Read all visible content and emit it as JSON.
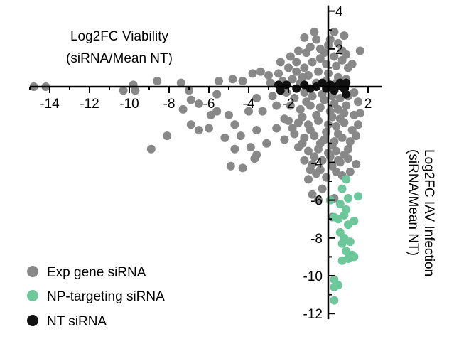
{
  "chart_data": {
    "type": "scatter",
    "title": "",
    "xlabel": [
      "Log2FC Viability",
      "(siRNA/Mean NT)"
    ],
    "ylabel": [
      "Log2FC IAV Infection",
      "(siRNA/Mean NT)"
    ],
    "xlim": [
      -15,
      2.7
    ],
    "ylim": [
      -12.3,
      4.3
    ],
    "x_ticks": [
      -14,
      -12,
      -10,
      -8,
      -6,
      -4,
      -2,
      2
    ],
    "y_ticks": [
      4,
      2,
      -4,
      -6,
      -8,
      -10,
      -12
    ],
    "axes_cross_at_origin": true,
    "grid": false,
    "legend_position": "bottom-left",
    "colors": {
      "exp": "#888888",
      "np": "#6cc79a",
      "nt": "#111111",
      "axis": "#000000"
    },
    "series": [
      {
        "name": "Exp gene siRNA",
        "color_key": "exp",
        "points": [
          [
            -14.8,
            0.0
          ],
          [
            -14.2,
            0.0
          ],
          [
            -10.3,
            -0.2
          ],
          [
            -9.8,
            0.1
          ],
          [
            -9.7,
            -0.2
          ],
          [
            -8.6,
            0.3
          ],
          [
            -8.9,
            -3.3
          ],
          [
            -8.1,
            -2.6
          ],
          [
            -7.3,
            -1.2
          ],
          [
            -6.9,
            -0.7
          ],
          [
            -6.5,
            -0.9
          ],
          [
            -6.9,
            -2.0
          ],
          [
            -6.5,
            -2.3
          ],
          [
            -6.0,
            -2.2
          ],
          [
            -5.9,
            -1.5
          ],
          [
            -5.6,
            -1.3
          ],
          [
            -5.2,
            -2.7
          ],
          [
            -5.6,
            -0.4
          ],
          [
            -5.0,
            -1.5
          ],
          [
            -4.7,
            -2.0
          ],
          [
            -4.4,
            -2.6
          ],
          [
            -4.7,
            -3.3
          ],
          [
            -4.3,
            -4.3
          ],
          [
            -4.9,
            -4.2
          ],
          [
            -7.4,
            0.2
          ],
          [
            -7.0,
            -0.2
          ],
          [
            -5.5,
            0.3
          ],
          [
            -4.8,
            0.4
          ],
          [
            -4.3,
            0.3
          ],
          [
            -3.8,
            0.7
          ],
          [
            -3.4,
            0.8
          ],
          [
            -3.6,
            -0.6
          ],
          [
            -3.3,
            -1.3
          ],
          [
            -4.0,
            -1.3
          ],
          [
            -3.6,
            -2.3
          ],
          [
            -3.1,
            -3.0
          ],
          [
            -2.6,
            -2.2
          ],
          [
            -2.2,
            -1.7
          ],
          [
            -3.9,
            -3.2
          ],
          [
            -3.6,
            -3.6
          ],
          [
            -3.7,
            -3.8
          ],
          [
            -3.0,
            0.6
          ],
          [
            -2.8,
            -0.5
          ],
          [
            -2.5,
            0.7
          ],
          [
            -2.0,
            1.0
          ],
          [
            -1.6,
            0.8
          ],
          [
            -1.2,
            1.0
          ],
          [
            -0.8,
            1.3
          ],
          [
            -0.4,
            1.5
          ],
          [
            -0.1,
            1.2
          ],
          [
            0.3,
            1.6
          ],
          [
            0.7,
            1.4
          ],
          [
            1.0,
            1.0
          ],
          [
            -1.5,
            1.9
          ],
          [
            -0.9,
            2.1
          ],
          [
            -0.4,
            2.0
          ],
          [
            0.1,
            2.5
          ],
          [
            0.5,
            2.3
          ],
          [
            0.8,
            2.7
          ],
          [
            -1.2,
            2.6
          ],
          [
            -0.7,
            2.9
          ],
          [
            0.3,
            2.9
          ],
          [
            0.7,
            1.9
          ],
          [
            1.2,
            1.2
          ],
          [
            1.6,
            1.9
          ],
          [
            -1.6,
            1.3
          ],
          [
            -1.0,
            0.6
          ],
          [
            -0.5,
            0.8
          ],
          [
            0.0,
            0.7
          ],
          [
            0.5,
            0.5
          ],
          [
            0.9,
            0.4
          ],
          [
            -2.3,
            0.3
          ],
          [
            -1.8,
            0.4
          ],
          [
            -1.3,
            0.5
          ],
          [
            -2.1,
            -0.3
          ],
          [
            -1.7,
            -0.6
          ],
          [
            -1.2,
            -0.3
          ],
          [
            -0.8,
            -0.5
          ],
          [
            -0.3,
            -0.4
          ],
          [
            0.2,
            -0.5
          ],
          [
            0.6,
            -0.6
          ],
          [
            1.0,
            -0.5
          ],
          [
            1.3,
            -0.3
          ],
          [
            -1.9,
            -1.0
          ],
          [
            -1.4,
            -1.2
          ],
          [
            -0.9,
            -1.0
          ],
          [
            -0.4,
            -1.1
          ],
          [
            0.1,
            -1.3
          ],
          [
            0.5,
            -1.2
          ],
          [
            0.9,
            -1.0
          ],
          [
            1.3,
            -1.5
          ],
          [
            -2.0,
            -1.8
          ],
          [
            -1.5,
            -1.9
          ],
          [
            -1.0,
            -2.0
          ],
          [
            -0.5,
            -1.8
          ],
          [
            0.0,
            -2.0
          ],
          [
            0.4,
            -2.1
          ],
          [
            0.8,
            -1.9
          ],
          [
            1.2,
            -2.3
          ],
          [
            -1.7,
            -2.5
          ],
          [
            -1.2,
            -2.7
          ],
          [
            -0.7,
            -2.6
          ],
          [
            -0.2,
            -2.8
          ],
          [
            0.3,
            -2.9
          ],
          [
            0.7,
            -2.7
          ],
          [
            1.1,
            -2.9
          ],
          [
            -1.5,
            -3.2
          ],
          [
            -1.0,
            -3.4
          ],
          [
            -0.5,
            -3.3
          ],
          [
            0.0,
            -3.5
          ],
          [
            0.4,
            -3.4
          ],
          [
            0.8,
            -3.6
          ],
          [
            -1.2,
            -3.9
          ],
          [
            -0.8,
            -4.1
          ],
          [
            -0.3,
            -3.9
          ],
          [
            0.2,
            -4.2
          ],
          [
            0.6,
            -4.0
          ],
          [
            1.0,
            -3.8
          ],
          [
            -0.6,
            -4.6
          ],
          [
            -0.1,
            -4.8
          ],
          [
            -1.0,
            -4.9
          ],
          [
            -0.8,
            -5.7
          ],
          [
            -0.3,
            -5.4
          ],
          [
            -0.5,
            -6.0
          ],
          [
            0.3,
            -5.9
          ],
          [
            0.2,
            -6.9
          ],
          [
            0.7,
            -4.7
          ],
          [
            1.1,
            -4.5
          ],
          [
            1.5,
            -2.0
          ],
          [
            1.6,
            -1.4
          ],
          [
            1.5,
            -0.8
          ],
          [
            -2.2,
            -2.8
          ],
          [
            -2.6,
            -1.0
          ],
          [
            -2.9,
            0.2
          ],
          [
            -2.4,
            1.3
          ],
          [
            -1.9,
            1.6
          ],
          [
            -1.1,
            1.8
          ],
          [
            -0.2,
            1.8
          ],
          [
            0.4,
            1.1
          ],
          [
            0.9,
            1.7
          ],
          [
            -0.6,
            2.5
          ],
          [
            0.0,
            2.2
          ],
          [
            -1.4,
            0.2
          ],
          [
            -0.6,
            0.2
          ],
          [
            -0.1,
            0.3
          ],
          [
            0.4,
            0.2
          ],
          [
            -1.1,
            -0.8
          ],
          [
            -0.2,
            -0.7
          ],
          [
            0.3,
            -0.9
          ],
          [
            0.8,
            -1.4
          ],
          [
            -1.3,
            -1.6
          ],
          [
            -0.6,
            -1.5
          ],
          [
            0.2,
            -1.6
          ],
          [
            0.6,
            -1.7
          ],
          [
            -1.8,
            -2.2
          ],
          [
            -0.9,
            -2.3
          ],
          [
            -0.1,
            -2.4
          ],
          [
            0.5,
            -2.5
          ],
          [
            -1.3,
            -3.0
          ],
          [
            -0.4,
            -3.0
          ],
          [
            0.2,
            -3.1
          ],
          [
            -0.7,
            -3.7
          ],
          [
            0.1,
            -3.7
          ],
          [
            0.5,
            -3.9
          ],
          [
            -0.9,
            -4.4
          ],
          [
            -0.4,
            -4.4
          ],
          [
            0.4,
            -4.5
          ],
          [
            1.4,
            -4.1
          ],
          [
            1.0,
            -3.3
          ],
          [
            1.4,
            -2.6
          ]
        ]
      },
      {
        "name": "NP-targeting siRNA",
        "color_key": "np",
        "points": [
          [
            0.9,
            -4.9
          ],
          [
            0.7,
            -5.4
          ],
          [
            1.0,
            -5.9
          ],
          [
            0.6,
            -6.2
          ],
          [
            0.3,
            -6.9
          ],
          [
            0.5,
            -7.0
          ],
          [
            0.8,
            -6.8
          ],
          [
            0.6,
            -7.7
          ],
          [
            1.0,
            -7.3
          ],
          [
            1.3,
            -7.1
          ],
          [
            0.7,
            -8.3
          ],
          [
            1.1,
            -8.2
          ],
          [
            0.9,
            -8.7
          ],
          [
            1.2,
            -8.9
          ],
          [
            0.7,
            -9.2
          ],
          [
            1.0,
            -9.1
          ],
          [
            1.3,
            -9.0
          ],
          [
            0.3,
            -10.2
          ],
          [
            0.5,
            -10.5
          ],
          [
            0.3,
            -10.6
          ],
          [
            0.3,
            -11.3
          ],
          [
            1.5,
            -5.8
          ],
          [
            0.1,
            -6.0
          ],
          [
            0.9,
            -6.5
          ],
          [
            0.8,
            -8.0
          ]
        ]
      },
      {
        "name": "NT siRNA",
        "color_key": "nt",
        "points": [
          [
            -2.5,
            0.1
          ],
          [
            -2.4,
            -0.2
          ],
          [
            -2.1,
            0.1
          ],
          [
            -1.6,
            -0.1
          ],
          [
            -1.2,
            0.1
          ],
          [
            -0.9,
            -0.1
          ],
          [
            -0.6,
            0.0
          ],
          [
            -0.3,
            0.2
          ],
          [
            -0.1,
            -0.1
          ],
          [
            0.1,
            0.1
          ],
          [
            0.3,
            -0.2
          ],
          [
            0.6,
            0.2
          ],
          [
            0.8,
            -0.1
          ],
          [
            0.9,
            0.2
          ],
          [
            0.4,
            0.0
          ],
          [
            0.9,
            -0.4
          ]
        ]
      }
    ]
  },
  "legend": {
    "items": [
      {
        "label": "Exp gene siRNA",
        "color": "#888888"
      },
      {
        "label": "NP-targeting siRNA",
        "color": "#6cc79a"
      },
      {
        "label": "NT siRNA",
        "color": "#111111"
      }
    ]
  }
}
